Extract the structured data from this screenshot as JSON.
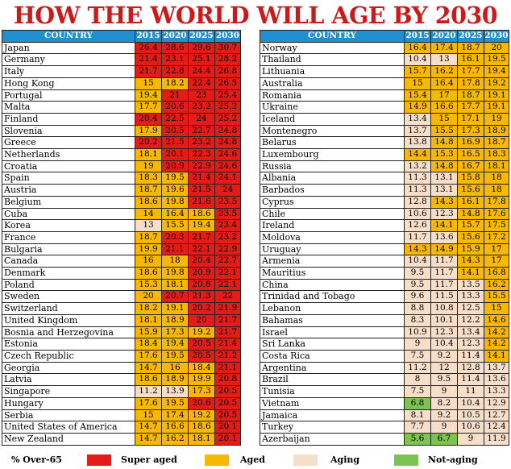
{
  "title": "HOW THE WORLD WILL AGE BY 2030",
  "headers": [
    "COUNTRY",
    "2015",
    "2020",
    "2025",
    "2030"
  ],
  "legend": {
    "title": "% Over-65",
    "items": [
      {
        "label": "Super aged",
        "class": "super",
        "color": "#e41b17"
      },
      {
        "label": "Aged",
        "class": "aged",
        "color": "#f8b800"
      },
      {
        "label": "Aging",
        "class": "aging",
        "color": "#f7dec9"
      },
      {
        "label": "Not-aging",
        "class": "notaging",
        "color": "#7cc352"
      }
    ]
  },
  "chart_data": {
    "type": "table",
    "columns": [
      "2015",
      "2020",
      "2025",
      "2030"
    ],
    "left_rows": [
      [
        "Japan",
        "26.4",
        "28.6",
        "29.6",
        "30.7"
      ],
      [
        "Germany",
        "21.4",
        "23.1",
        "25.1",
        "28.2"
      ],
      [
        "Italy",
        "21.7",
        "22.8",
        "24.4",
        "26.8"
      ],
      [
        "Hong Kong",
        "15",
        "18.2",
        "22.4",
        "26.5"
      ],
      [
        "Portugal",
        "19.4",
        "21",
        "23",
        "25.4"
      ],
      [
        "Malta",
        "17.7",
        "20.6",
        "23.2",
        "25.2"
      ],
      [
        "Finland",
        "20.4",
        "22.5",
        "24",
        "25.2"
      ],
      [
        "Slovenia",
        "17.9",
        "20.5",
        "22.7",
        "24.8"
      ],
      [
        "Greece",
        "20.2",
        "21.5",
        "23.2",
        "24.8"
      ],
      [
        "Netherlands",
        "18.1",
        "20.1",
        "22.3",
        "24.6"
      ],
      [
        "Croatia",
        "19",
        "20.9",
        "22.9",
        "24.6"
      ],
      [
        "Spain",
        "18.3",
        "19.5",
        "21.4",
        "24.1"
      ],
      [
        "Austria",
        "18.7",
        "19.6",
        "21.5",
        "24"
      ],
      [
        "Belgium",
        "18.6",
        "19.8",
        "21.6",
        "23.5"
      ],
      [
        "Cuba",
        "14",
        "16.4",
        "18.6",
        "23.5"
      ],
      [
        "Korea",
        "13",
        "15.5",
        "19.4",
        "23.4"
      ],
      [
        "France",
        "18.7",
        "20.3",
        "21.7",
        "23.2"
      ],
      [
        "Bulgaria",
        "19.9",
        "21.1",
        "22.1",
        "22.9"
      ],
      [
        "Canada",
        "16",
        "18",
        "20.4",
        "22.7"
      ],
      [
        "Denmark",
        "18.6",
        "19.8",
        "20.9",
        "22.1"
      ],
      [
        "Poland",
        "15.3",
        "18.1",
        "20.8",
        "22.1"
      ],
      [
        "Sweden",
        "20",
        "20.7",
        "21.3",
        "22"
      ],
      [
        "Switzerland",
        "18.2",
        "19.1",
        "20.2",
        "21.9"
      ],
      [
        "United Kingdom",
        "18.1",
        "18.9",
        "20",
        "21.7"
      ],
      [
        "Bosnia and Herzegovina",
        "15.9",
        "17.3",
        "19.2",
        "21.7"
      ],
      [
        "Estonia",
        "18.4",
        "19.4",
        "20.5",
        "21.4"
      ],
      [
        "Czech Republic",
        "17.6",
        "19.5",
        "20.5",
        "21.2"
      ],
      [
        "Georgia",
        "14.7",
        "16",
        "18.4",
        "21.1"
      ],
      [
        "Latvia",
        "18.6",
        "18.9",
        "19.9",
        "20.8"
      ],
      [
        "Singapore",
        "11.2",
        "13.9",
        "17.3",
        "20.5"
      ],
      [
        "Hungary",
        "17.6",
        "19.5",
        "20.6",
        "20.5"
      ],
      [
        "Serbia",
        "15",
        "17.4",
        "19.2",
        "20.5"
      ],
      [
        "United States of America",
        "14.7",
        "16.6",
        "18.6",
        "20.1"
      ],
      [
        "New Zealand",
        "14.7",
        "16.2",
        "18.1",
        "20.1"
      ]
    ],
    "left_classes": [
      [
        "super",
        "super",
        "super",
        "super"
      ],
      [
        "super",
        "super",
        "super",
        "super"
      ],
      [
        "super",
        "super",
        "super",
        "super"
      ],
      [
        "aged",
        "aged",
        "super",
        "super"
      ],
      [
        "aged",
        "super",
        "super",
        "super"
      ],
      [
        "aged",
        "super",
        "super",
        "super"
      ],
      [
        "super",
        "super",
        "super",
        "super"
      ],
      [
        "aged",
        "super",
        "super",
        "super"
      ],
      [
        "super",
        "super",
        "super",
        "super"
      ],
      [
        "aged",
        "super",
        "super",
        "super"
      ],
      [
        "aged",
        "super",
        "super",
        "super"
      ],
      [
        "aged",
        "aged",
        "super",
        "super"
      ],
      [
        "aged",
        "aged",
        "super",
        "super"
      ],
      [
        "aged",
        "aged",
        "super",
        "super"
      ],
      [
        "aged",
        "aged",
        "aged",
        "super"
      ],
      [
        "aging",
        "aged",
        "aged",
        "super"
      ],
      [
        "aged",
        "super",
        "super",
        "super"
      ],
      [
        "aged",
        "super",
        "super",
        "super"
      ],
      [
        "aged",
        "aged",
        "super",
        "super"
      ],
      [
        "aged",
        "aged",
        "super",
        "super"
      ],
      [
        "aged",
        "aged",
        "super",
        "super"
      ],
      [
        "aged",
        "super",
        "super",
        "super"
      ],
      [
        "aged",
        "aged",
        "super",
        "super"
      ],
      [
        "aged",
        "aged",
        "super",
        "super"
      ],
      [
        "aged",
        "aged",
        "aged",
        "super"
      ],
      [
        "aged",
        "aged",
        "super",
        "super"
      ],
      [
        "aged",
        "aged",
        "super",
        "super"
      ],
      [
        "aged",
        "aged",
        "aged",
        "super"
      ],
      [
        "aged",
        "aged",
        "aged",
        "super"
      ],
      [
        "aging",
        "aging",
        "aged",
        "super"
      ],
      [
        "aged",
        "aged",
        "super",
        "super"
      ],
      [
        "aged",
        "aged",
        "aged",
        "super"
      ],
      [
        "aged",
        "aged",
        "aged",
        "super"
      ],
      [
        "aged",
        "aged",
        "aged",
        "super"
      ]
    ],
    "right_rows": [
      [
        "Norway",
        "16.4",
        "17.4",
        "18.7",
        "20"
      ],
      [
        "Thailand",
        "10.4",
        "13",
        "16.1",
        "19.5"
      ],
      [
        "Lithuania",
        "15.7",
        "16.2",
        "17.7",
        "19.4"
      ],
      [
        "Australia",
        "15",
        "16.4",
        "17.8",
        "19.2"
      ],
      [
        "Romania",
        "15.4",
        "17",
        "18.7",
        "19.1"
      ],
      [
        "Ukraine",
        "14.9",
        "16.6",
        "17.7",
        "19.1"
      ],
      [
        "Iceland",
        "13.4",
        "15",
        "17.1",
        "19"
      ],
      [
        "Montenegro",
        "13.7",
        "15.5",
        "17.3",
        "18.9"
      ],
      [
        "Belarus",
        "13.8",
        "14.8",
        "16.9",
        "18.7"
      ],
      [
        "Luxembourg",
        "14.4",
        "15.3",
        "16.5",
        "18.3"
      ],
      [
        "Russia",
        "13.2",
        "14.8",
        "16.7",
        "18.1"
      ],
      [
        "Albania",
        "11.3",
        "13.1",
        "15.8",
        "18"
      ],
      [
        "Barbados",
        "11.3",
        "13.1",
        "15.6",
        "18"
      ],
      [
        "Cyprus",
        "12.8",
        "14.3",
        "16.1",
        "17.8"
      ],
      [
        "Chile",
        "10.6",
        "12.3",
        "14.8",
        "17.6"
      ],
      [
        "Ireland",
        "12.6",
        "14.1",
        "15.7",
        "17.5"
      ],
      [
        "Moldova",
        "11.7",
        "13.6",
        "15.6",
        "17.2"
      ],
      [
        "Uruguay",
        "14.3",
        "14.9",
        "15.9",
        "17"
      ],
      [
        "Armenia",
        "10.4",
        "11.7",
        "14.3",
        "17"
      ],
      [
        "Mauritius",
        "9.5",
        "11.7",
        "14.1",
        "16.8"
      ],
      [
        "China",
        "9.5",
        "11.7",
        "13.5",
        "16.2"
      ],
      [
        "Trinidad and Tobago",
        "9.6",
        "11.5",
        "13.3",
        "15.5"
      ],
      [
        "Lebanon",
        "8.8",
        "10.8",
        "12.5",
        "15"
      ],
      [
        "Bahamas",
        "8.3",
        "10.1",
        "12.2",
        "14.6"
      ],
      [
        "Israel",
        "10.9",
        "12.3",
        "13.4",
        "14.2"
      ],
      [
        "Sri Lanka",
        "9",
        "10.4",
        "12.3",
        "14.2"
      ],
      [
        "Costa Rica",
        "7.5",
        "9.2",
        "11.4",
        "14.1"
      ],
      [
        "Argentina",
        "11.2",
        "12",
        "12.8",
        "13.7"
      ],
      [
        "Brazil",
        "8",
        "9.5",
        "11.4",
        "13.6"
      ],
      [
        "Tunisia",
        "7.5",
        "9",
        "11",
        "13.3"
      ],
      [
        "Vietnam",
        "6.8",
        "8.2",
        "10.4",
        "12.9"
      ],
      [
        "Jamaica",
        "8.1",
        "9.2",
        "10.5",
        "12.7"
      ],
      [
        "Turkey",
        "7.7",
        "9",
        "10.6",
        "12.4"
      ],
      [
        "Azerbaijan",
        "5.6",
        "6.7",
        "9",
        "11.9"
      ]
    ],
    "right_classes": [
      [
        "aged",
        "aged",
        "aged",
        "aged"
      ],
      [
        "aging",
        "aging",
        "aged",
        "aged"
      ],
      [
        "aged",
        "aged",
        "aged",
        "aged"
      ],
      [
        "aged",
        "aged",
        "aged",
        "aged"
      ],
      [
        "aged",
        "aged",
        "aged",
        "aged"
      ],
      [
        "aged",
        "aged",
        "aged",
        "aged"
      ],
      [
        "aging",
        "aged",
        "aged",
        "aged"
      ],
      [
        "aging",
        "aged",
        "aged",
        "aged"
      ],
      [
        "aging",
        "aged",
        "aged",
        "aged"
      ],
      [
        "aged",
        "aged",
        "aged",
        "aged"
      ],
      [
        "aging",
        "aged",
        "aged",
        "aged"
      ],
      [
        "aging",
        "aging",
        "aged",
        "aged"
      ],
      [
        "aging",
        "aging",
        "aged",
        "aged"
      ],
      [
        "aging",
        "aged",
        "aged",
        "aged"
      ],
      [
        "aging",
        "aging",
        "aged",
        "aged"
      ],
      [
        "aging",
        "aged",
        "aged",
        "aged"
      ],
      [
        "aging",
        "aging",
        "aged",
        "aged"
      ],
      [
        "aged",
        "aged",
        "aged",
        "aged"
      ],
      [
        "aging",
        "aging",
        "aged",
        "aged"
      ],
      [
        "aging",
        "aging",
        "aged",
        "aged"
      ],
      [
        "aging",
        "aging",
        "aging",
        "aged"
      ],
      [
        "aging",
        "aging",
        "aging",
        "aged"
      ],
      [
        "aging",
        "aging",
        "aging",
        "aged"
      ],
      [
        "aging",
        "aging",
        "aging",
        "aged"
      ],
      [
        "aging",
        "aging",
        "aging",
        "aged"
      ],
      [
        "aging",
        "aging",
        "aging",
        "aged"
      ],
      [
        "aging",
        "aging",
        "aging",
        "aged"
      ],
      [
        "aging",
        "aging",
        "aging",
        "aging"
      ],
      [
        "aging",
        "aging",
        "aging",
        "aging"
      ],
      [
        "aging",
        "aging",
        "aging",
        "aging"
      ],
      [
        "notaging",
        "aging",
        "aging",
        "aging"
      ],
      [
        "aging",
        "aging",
        "aging",
        "aging"
      ],
      [
        "aging",
        "aging",
        "aging",
        "aging"
      ],
      [
        "notaging",
        "notaging",
        "aging",
        "aging"
      ]
    ]
  }
}
